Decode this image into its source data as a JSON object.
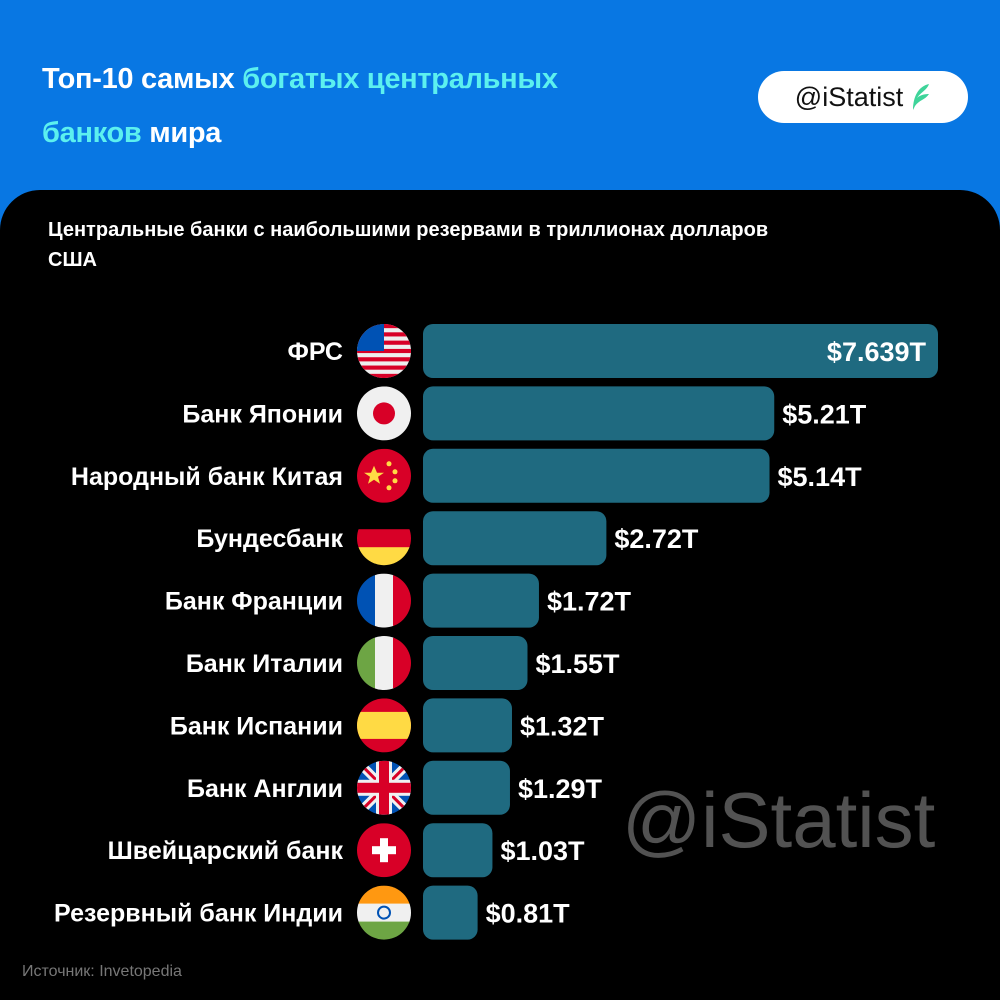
{
  "header": {
    "title_part1": "Топ-10 самых ",
    "title_highlight1": "богатых центральных",
    "title_highlight2": "банков",
    "title_part2": " мира",
    "badge": "@iStatist"
  },
  "colors": {
    "background": "#0877e3",
    "highlight": "#5cf0ef",
    "bar": "#1f6a80",
    "panel": "#000000"
  },
  "chart_data": {
    "type": "bar",
    "orientation": "horizontal",
    "title": "Центральные банки с наибольшими резервами в триллионах долларов США",
    "categories": [
      "ФРС",
      "Банк Японии",
      "Народный банк Китая",
      "Бундесбанк",
      "Банк Франции",
      "Банк Италии",
      "Банк Испании",
      "Банк Англии",
      "Швейцарский банк",
      "Резервный банк Индии"
    ],
    "values": [
      7.639,
      5.21,
      5.14,
      2.72,
      1.72,
      1.55,
      1.32,
      1.29,
      1.03,
      0.81
    ],
    "labels": [
      "$7.639T",
      "$5.21T",
      "$5.14T",
      "$2.72T",
      "$1.72T",
      "$1.55T",
      "$1.32T",
      "$1.29T",
      "$1.03T",
      "$0.81T"
    ],
    "flags": [
      "usa-flag-icon",
      "japan-flag-icon",
      "china-flag-icon",
      "germany-flag-icon",
      "france-flag-icon",
      "italy-flag-icon",
      "spain-flag-icon",
      "uk-flag-icon",
      "switzerland-flag-icon",
      "india-flag-icon"
    ],
    "grid": false
  },
  "footer": {
    "source": "Источник: Invetopedia",
    "watermark": "@iStatist"
  }
}
